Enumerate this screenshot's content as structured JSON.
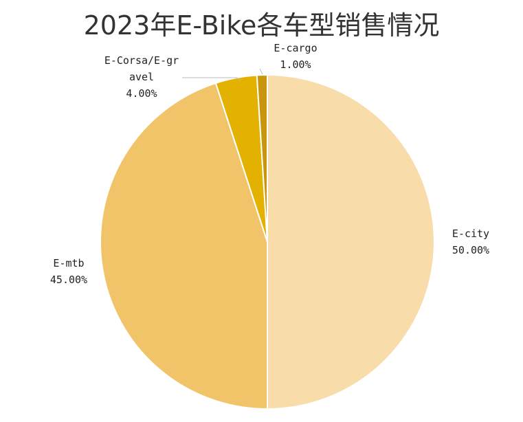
{
  "chart_data": {
    "type": "pie",
    "title": "2023年E-Bike各车型销售情况",
    "categories": [
      "E-city",
      "E-mtb",
      "E-Corsa/E-gravel",
      "E-cargo"
    ],
    "values": [
      50,
      45,
      4,
      1
    ],
    "value_labels": [
      "50.00%",
      "45.00%",
      "4.00%",
      "1.00%"
    ],
    "colors": [
      "#f8dcaa",
      "#f2c46a",
      "#e3b100",
      "#c8960c"
    ]
  }
}
